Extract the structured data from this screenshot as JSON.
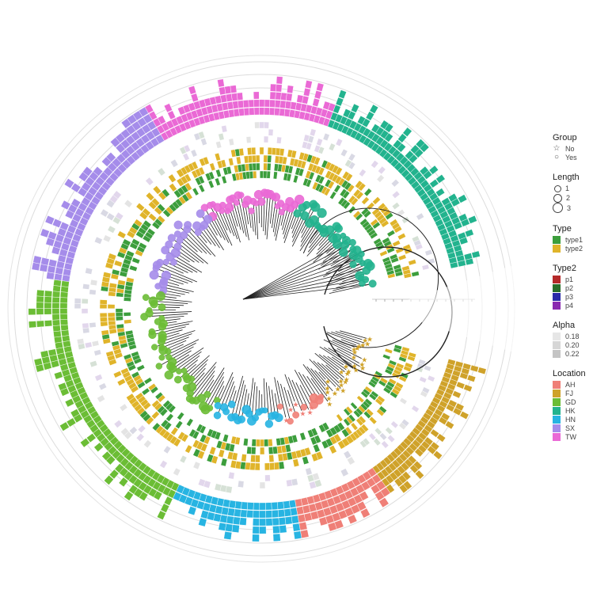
{
  "chart_data": {
    "type": "circular-phylogenetic-tree",
    "title": "",
    "center": [
      330,
      390
    ],
    "tree": {
      "root": [
        307,
        378
      ],
      "radius_range": [
        70,
        150
      ],
      "open_gap_degrees": [
        -10,
        10
      ],
      "tip_groups": [
        {
          "location": "HK",
          "start_deg": 12,
          "end_deg": 70,
          "count": 40
        },
        {
          "location": "TW",
          "start_deg": 70,
          "end_deg": 120,
          "count": 34
        },
        {
          "location": "SX",
          "start_deg": 120,
          "end_deg": 172,
          "count": 30
        },
        {
          "location": "GD",
          "start_deg": 172,
          "end_deg": 245,
          "count": 46
        },
        {
          "location": "HN",
          "start_deg": 245,
          "end_deg": 280,
          "count": 20
        },
        {
          "location": "AH",
          "start_deg": 280,
          "end_deg": 305,
          "count": 14
        },
        {
          "location": "FJ",
          "start_deg": 305,
          "end_deg": 345,
          "count": 30
        }
      ]
    },
    "rings": [
      {
        "name": "Type",
        "inner_r": 165,
        "outer_r": 205,
        "columns": 4,
        "categories": [
          "type1",
          "type2"
        ]
      },
      {
        "name": "Alpha",
        "inner_r": 210,
        "outer_r": 238,
        "categories": [
          "0.18",
          "0.20",
          "0.22"
        ]
      },
      {
        "name": "Location bars",
        "inner_r": 245,
        "outer_r": 300,
        "max_value": 6,
        "guide_circles": [
          262,
          279,
          296,
          312
        ]
      }
    ],
    "axis_ticks_gap": {
      "count": 12,
      "labels_legible": false
    },
    "legend_position": "right",
    "legends": {
      "group": {
        "title": "Group",
        "items": [
          {
            "label": "No",
            "symbol": "star"
          },
          {
            "label": "Yes",
            "symbol": "circle"
          }
        ]
      },
      "length": {
        "title": "Length",
        "items": [
          {
            "label": "1",
            "size": 7
          },
          {
            "label": "2",
            "size": 9
          },
          {
            "label": "3",
            "size": 11
          }
        ]
      },
      "type": {
        "title": "Type",
        "items": [
          {
            "label": "type1",
            "color": "#3c9e3c"
          },
          {
            "label": "type2",
            "color": "#e0b42a"
          }
        ]
      },
      "type2": {
        "title": "Type2",
        "items": [
          {
            "label": "p1",
            "color": "#b52a2a"
          },
          {
            "label": "p2",
            "color": "#2a6e2a"
          },
          {
            "label": "p3",
            "color": "#2a2aa8"
          },
          {
            "label": "p4",
            "color": "#8a2ab0"
          }
        ]
      },
      "alpha": {
        "title": "Alpha",
        "items": [
          {
            "label": "0.18",
            "color": "#e6e6e6"
          },
          {
            "label": "0.20",
            "color": "#d6d6d6"
          },
          {
            "label": "0.22",
            "color": "#c4c4c4"
          }
        ]
      },
      "location": {
        "title": "Location",
        "items": [
          {
            "label": "AH",
            "color": "#ef7f77"
          },
          {
            "label": "FJ",
            "color": "#cfa22a"
          },
          {
            "label": "GD",
            "color": "#6bbd35"
          },
          {
            "label": "HK",
            "color": "#22b38e"
          },
          {
            "label": "HN",
            "color": "#27b4e2"
          },
          {
            "label": "SX",
            "color": "#a58cea"
          },
          {
            "label": "TW",
            "color": "#ea69d5"
          }
        ]
      }
    }
  }
}
